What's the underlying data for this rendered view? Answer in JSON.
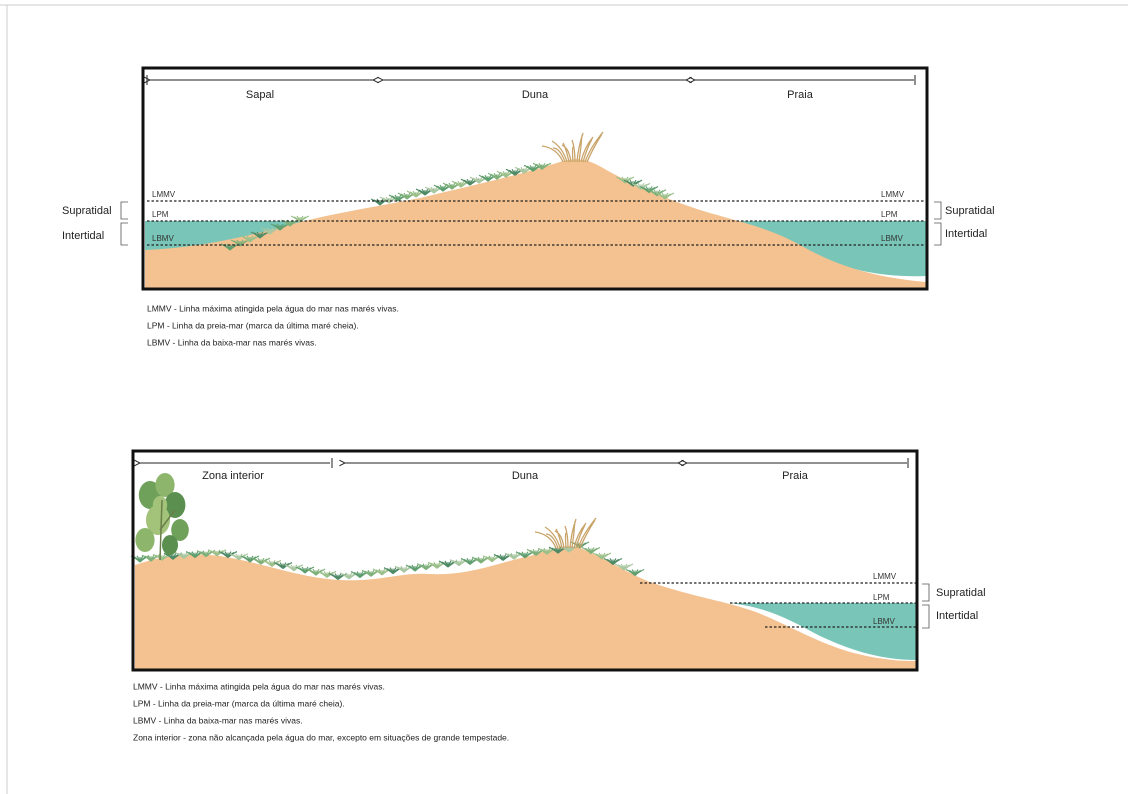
{
  "diagrams": [
    {
      "zones": [
        "Sapal",
        "Duna",
        "Praia"
      ],
      "tide_lines": [
        "LMMV",
        "LPM",
        "LBMV"
      ],
      "tide_zones": [
        "Supratidal",
        "Intertidal"
      ],
      "legend": [
        "LMMV - Linha máxima atingida pela água do mar nas marés vivas.",
        "LPM - Linha da preia-mar (marca da última maré cheia).",
        "LBMV - Linha da baixa-mar nas marés vivas."
      ]
    },
    {
      "zones": [
        "Zona interior",
        "Duna",
        "Praia"
      ],
      "tide_lines": [
        "LMMV",
        "LPM",
        "LBMV"
      ],
      "tide_zones": [
        "Supratidal",
        "Intertidal"
      ],
      "legend": [
        "LMMV - Linha máxima atingida pela água do mar nas marés vivas.",
        "LPM - Linha da preia-mar (marca da última maré cheia).",
        "LBMV - Linha da baixa-mar nas marés vivas.",
        "Zona interior - zona não alcançada pela água do mar, excepto em situações de grande tempestade."
      ]
    }
  ]
}
